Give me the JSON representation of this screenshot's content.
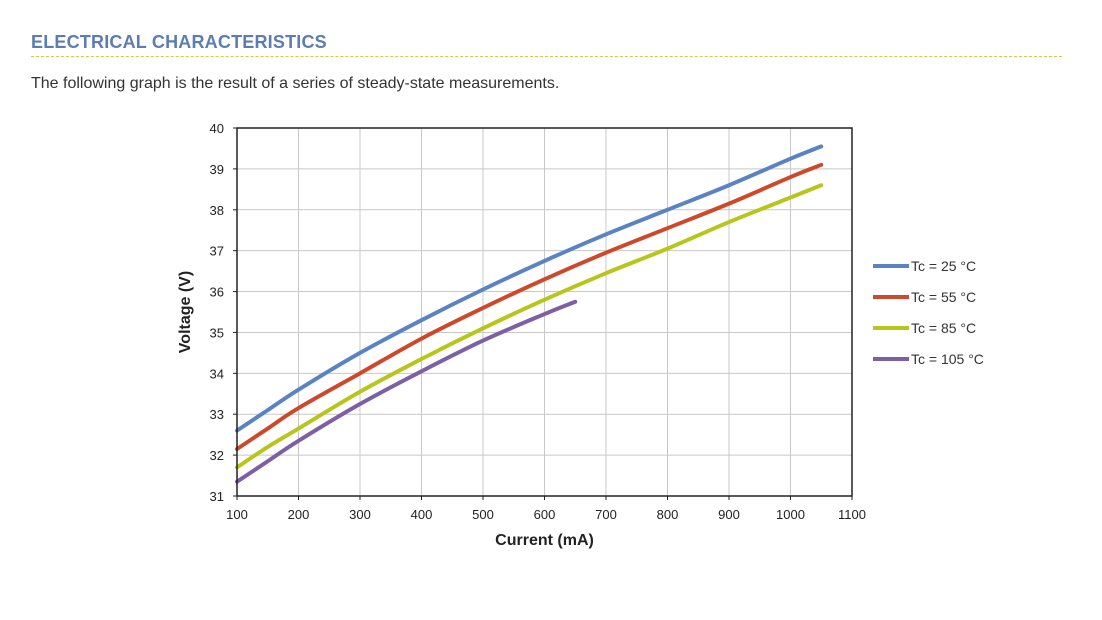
{
  "section": {
    "title": "ELECTRICAL CHARACTERISTICS",
    "intro": "The following graph is the result of a series of steady-state measurements."
  },
  "colors": {
    "title": "#5b7db3",
    "rule": "#e7c04a",
    "grid": "#c8c8c8",
    "frame": "#222222"
  },
  "chart_data": {
    "type": "line",
    "title": "",
    "xlabel": "Current (mA)",
    "ylabel": "Voltage (V)",
    "xlim": [
      100,
      1100
    ],
    "ylim": [
      31,
      40
    ],
    "xticks": [
      100,
      200,
      300,
      400,
      500,
      600,
      700,
      800,
      900,
      1000,
      1100
    ],
    "yticks": [
      31,
      32,
      33,
      34,
      35,
      36,
      37,
      38,
      39,
      40
    ],
    "grid": true,
    "legend_position": "right",
    "series": [
      {
        "name": "Tc = 25 °C",
        "color": "#5b83c2",
        "x": [
          100,
          150,
          200,
          300,
          400,
          500,
          600,
          700,
          800,
          900,
          1000,
          1050
        ],
        "y": [
          32.6,
          33.1,
          33.6,
          34.5,
          35.3,
          36.05,
          36.75,
          37.4,
          38.0,
          38.6,
          39.25,
          39.55
        ]
      },
      {
        "name": "Tc = 55 °C",
        "color": "#cc4a2a",
        "x": [
          100,
          150,
          200,
          300,
          400,
          500,
          600,
          700,
          800,
          900,
          1000,
          1050
        ],
        "y": [
          32.15,
          32.65,
          33.15,
          34.0,
          34.85,
          35.6,
          36.3,
          36.95,
          37.55,
          38.15,
          38.8,
          39.1
        ]
      },
      {
        "name": "Tc = 85 °C",
        "color": "#b7c61c",
        "x": [
          100,
          150,
          200,
          300,
          400,
          500,
          600,
          700,
          800,
          900,
          1000,
          1050
        ],
        "y": [
          31.7,
          32.2,
          32.65,
          33.55,
          34.35,
          35.1,
          35.8,
          36.45,
          37.05,
          37.7,
          38.3,
          38.6
        ]
      },
      {
        "name": "Tc = 105 °C",
        "color": "#7d60a4",
        "x": [
          100,
          150,
          200,
          300,
          400,
          500,
          600,
          650
        ],
        "y": [
          31.35,
          31.85,
          32.35,
          33.25,
          34.05,
          34.8,
          35.45,
          35.75
        ]
      }
    ]
  }
}
